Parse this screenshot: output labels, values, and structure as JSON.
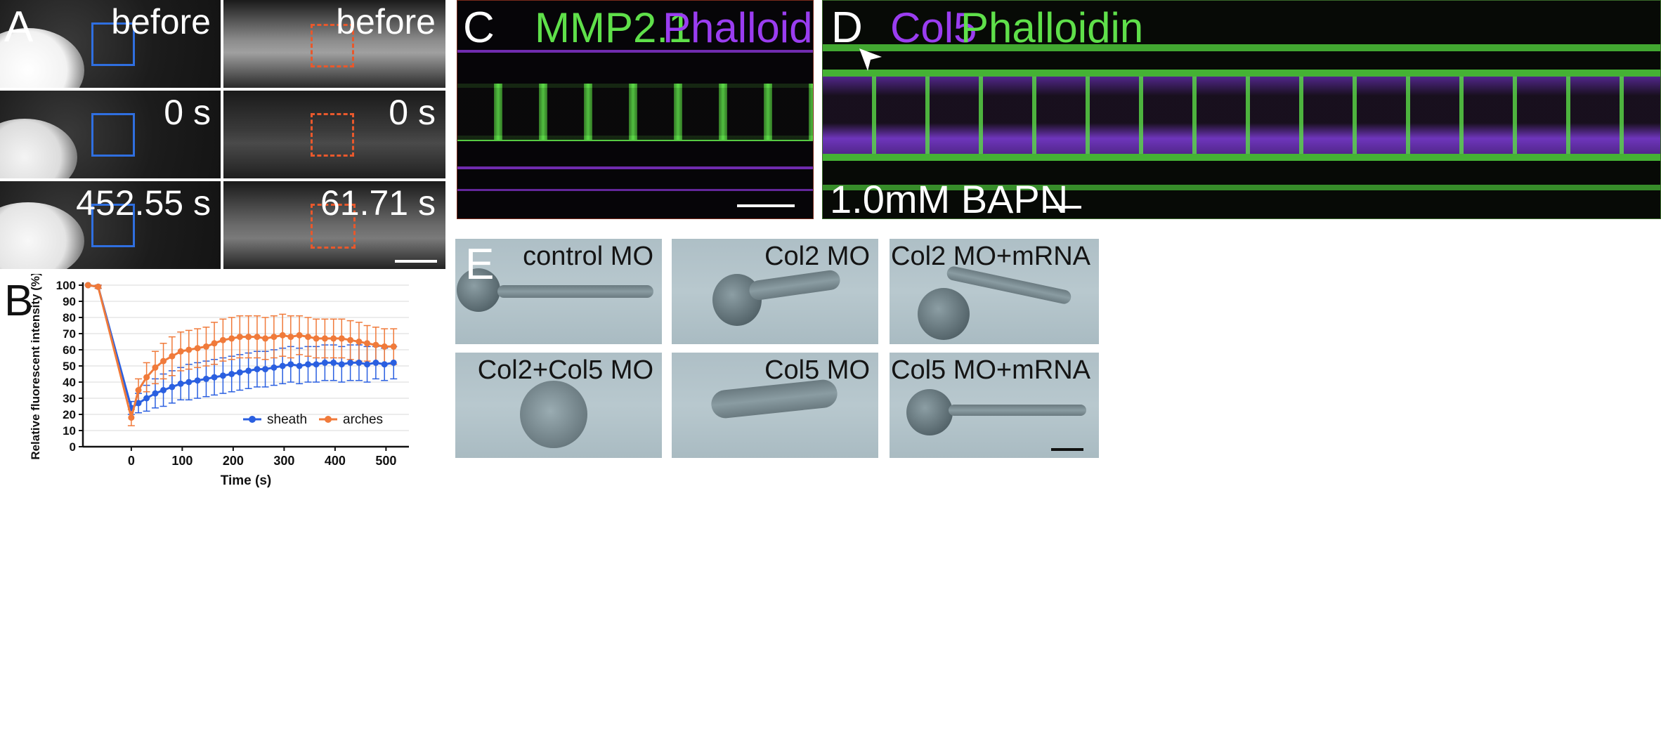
{
  "panels": {
    "A": {
      "letter": "A",
      "tiles": [
        {
          "label": "before"
        },
        {
          "label": "before"
        },
        {
          "label": "0 s"
        },
        {
          "label": "0 s"
        },
        {
          "label": "452.55 s"
        },
        {
          "label": "61.71 s"
        }
      ],
      "roi_colors": {
        "sheath": "#2f6fe0",
        "arches": "#e8582c"
      }
    },
    "B": {
      "letter": "B"
    },
    "C": {
      "letter": "C",
      "stain1": "MMP2.1",
      "stain2": "Phalloidin",
      "stain1_color": "#5fe04a",
      "stain2_color": "#9a3df0"
    },
    "D": {
      "letter": "D",
      "stain1": "Col5",
      "stain2": "Phalloidin",
      "stain1_color": "#9a3df0",
      "stain2_color": "#5fe04a",
      "treatment": "1.0mM BAPN"
    },
    "E": {
      "letter": "E",
      "images": [
        {
          "label": "control MO"
        },
        {
          "label": "Col2 MO"
        },
        {
          "label": "Col2 MO+mRNA"
        },
        {
          "label": "Col2+Col5 MO"
        },
        {
          "label": "Col5 MO"
        },
        {
          "label": "Col5 MO+mRNA"
        }
      ]
    }
  },
  "chart_data": {
    "type": "line",
    "title": "",
    "xlabel": "Time (s)",
    "ylabel": "Relative fluorescent intensity (%)",
    "xlim": [
      -95,
      545
    ],
    "ylim": [
      0,
      100
    ],
    "xticks": [
      0,
      100,
      200,
      300,
      400,
      500
    ],
    "yticks": [
      0,
      10,
      20,
      30,
      40,
      50,
      60,
      70,
      80,
      90,
      100
    ],
    "grid": "horizontal",
    "legend_position": "bottom-right",
    "series": [
      {
        "name": "sheath",
        "color": "#2a5fe0",
        "x": [
          -85,
          -65,
          0,
          14,
          30,
          47,
          63,
          80,
          97,
          113,
          130,
          147,
          163,
          180,
          197,
          213,
          230,
          247,
          263,
          280,
          297,
          313,
          330,
          347,
          363,
          380,
          397,
          413,
          430,
          447,
          463,
          480,
          497,
          515
        ],
        "y": [
          100,
          99,
          24,
          27,
          30,
          33,
          35,
          37,
          39,
          40,
          41,
          42,
          43,
          44,
          45,
          46,
          47,
          48,
          48,
          49,
          50,
          51,
          50,
          51,
          51,
          52,
          52,
          51,
          52,
          52,
          51,
          52,
          51,
          52
        ],
        "err": [
          0,
          1,
          4,
          6,
          8,
          9,
          10,
          10,
          10,
          11,
          11,
          11,
          11,
          11,
          11,
          11,
          11,
          11,
          11,
          11,
          11,
          11,
          11,
          11,
          11,
          11,
          11,
          11,
          11,
          11,
          11,
          10,
          10,
          10
        ]
      },
      {
        "name": "arches",
        "color": "#f07a3a",
        "x": [
          -85,
          -65,
          0,
          14,
          30,
          47,
          63,
          80,
          97,
          113,
          130,
          147,
          163,
          180,
          197,
          213,
          230,
          247,
          263,
          280,
          297,
          313,
          330,
          347,
          363,
          380,
          397,
          413,
          430,
          447,
          463,
          480,
          497,
          515
        ],
        "y": [
          100,
          99,
          18,
          35,
          43,
          49,
          53,
          56,
          59,
          60,
          61,
          62,
          64,
          66,
          67,
          68,
          68,
          68,
          67,
          68,
          69,
          68,
          69,
          68,
          67,
          67,
          67,
          67,
          66,
          65,
          64,
          63,
          62,
          62
        ],
        "err": [
          0,
          1,
          5,
          7,
          9,
          10,
          11,
          12,
          12,
          12,
          12,
          12,
          13,
          13,
          13,
          13,
          13,
          13,
          13,
          13,
          13,
          13,
          12,
          12,
          12,
          12,
          12,
          12,
          12,
          12,
          11,
          11,
          11,
          11
        ]
      }
    ]
  }
}
